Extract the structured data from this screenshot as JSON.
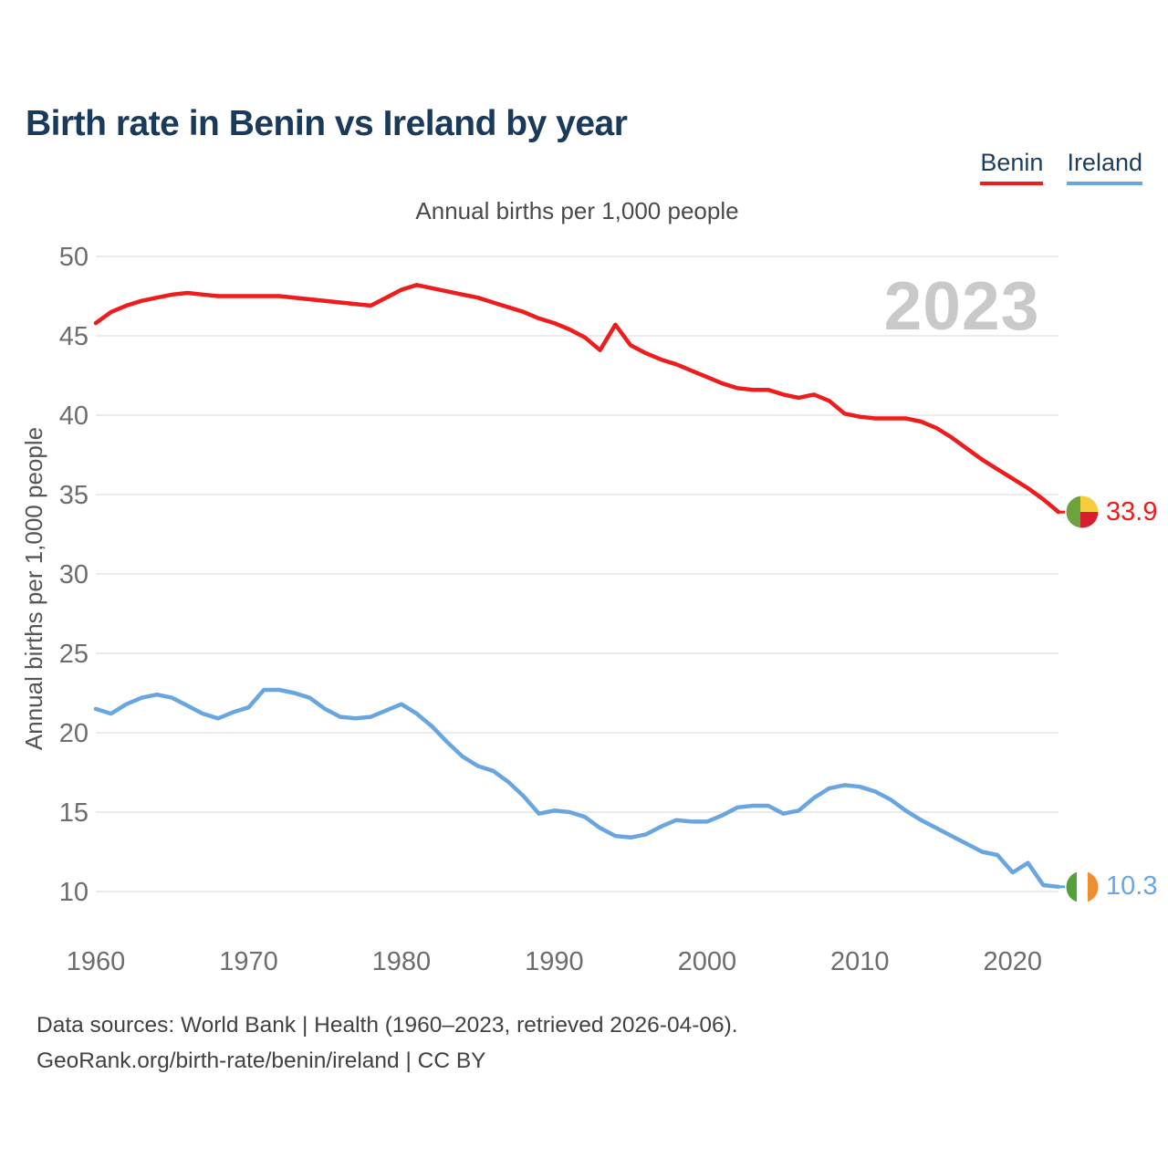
{
  "title": "Birth rate in Benin vs Ireland by year",
  "subtitle": "Annual births per 1,000 people",
  "watermark": "2023",
  "legend": [
    {
      "label": "Benin",
      "color": "#ee1c1c"
    },
    {
      "label": "Ireland",
      "color": "#69a6e0"
    }
  ],
  "end_labels": {
    "benin": "33.9",
    "ireland": "10.3"
  },
  "icons": {
    "benin_flag": {
      "green": "#6ca33d",
      "yellow": "#f5ce3e",
      "red": "#d81e2e"
    },
    "ireland_flag": {
      "green": "#55a03b",
      "white": "#ffffff",
      "orange": "#ef8d33"
    }
  },
  "footer": {
    "line1": "Data sources: World Bank | Health (1960–2023, retrieved 2026-04-06).",
    "line2": "GeoRank.org/birth-rate/benin/ireland | CC BY"
  },
  "chart_data": {
    "type": "line",
    "title": "Annual births per 1,000 people",
    "xlabel": "",
    "ylabel": "Annual births per 1,000 people",
    "ylim": [
      10,
      50
    ],
    "yticks": [
      10,
      15,
      20,
      25,
      30,
      35,
      40,
      45,
      50
    ],
    "xticks": [
      1960,
      1970,
      1980,
      1990,
      2000,
      2010,
      2020
    ],
    "grid": true,
    "legend_position": "top-right",
    "x": [
      1960,
      1961,
      1962,
      1963,
      1964,
      1965,
      1966,
      1967,
      1968,
      1969,
      1970,
      1971,
      1972,
      1973,
      1974,
      1975,
      1976,
      1977,
      1978,
      1979,
      1980,
      1981,
      1982,
      1983,
      1984,
      1985,
      1986,
      1987,
      1988,
      1989,
      1990,
      1991,
      1992,
      1993,
      1994,
      1995,
      1996,
      1997,
      1998,
      1999,
      2000,
      2001,
      2002,
      2003,
      2004,
      2005,
      2006,
      2007,
      2008,
      2009,
      2010,
      2011,
      2012,
      2013,
      2014,
      2015,
      2016,
      2017,
      2018,
      2019,
      2020,
      2021,
      2022,
      2023
    ],
    "series": [
      {
        "name": "Benin",
        "color": "#ee1c1c",
        "end_value": 33.9,
        "values": [
          45.8,
          46.5,
          46.9,
          47.2,
          47.4,
          47.6,
          47.7,
          47.6,
          47.5,
          47.5,
          47.5,
          47.5,
          47.5,
          47.4,
          47.3,
          47.2,
          47.1,
          47.0,
          46.9,
          47.4,
          47.9,
          48.2,
          48.0,
          47.8,
          47.6,
          47.4,
          47.1,
          46.8,
          46.5,
          46.1,
          45.8,
          45.4,
          44.9,
          44.1,
          45.7,
          44.4,
          43.9,
          43.5,
          43.2,
          42.8,
          42.4,
          42.0,
          41.7,
          41.6,
          41.6,
          41.3,
          41.1,
          41.3,
          40.9,
          40.1,
          39.9,
          39.8,
          39.8,
          39.8,
          39.6,
          39.2,
          38.6,
          37.9,
          37.2,
          36.6,
          36.0,
          35.4,
          34.7,
          33.9
        ]
      },
      {
        "name": "Ireland",
        "color": "#69a6e0",
        "end_value": 10.3,
        "values": [
          21.5,
          21.2,
          21.8,
          22.2,
          22.4,
          22.2,
          21.7,
          21.2,
          20.9,
          21.3,
          21.6,
          22.7,
          22.7,
          22.5,
          22.2,
          21.5,
          21.0,
          20.9,
          21.0,
          21.4,
          21.8,
          21.2,
          20.4,
          19.4,
          18.5,
          17.9,
          17.6,
          16.9,
          16.0,
          14.9,
          15.1,
          15.0,
          14.7,
          14.0,
          13.5,
          13.4,
          13.6,
          14.1,
          14.5,
          14.4,
          14.4,
          14.8,
          15.3,
          15.4,
          15.4,
          14.9,
          15.1,
          15.9,
          16.5,
          16.7,
          16.6,
          16.3,
          15.8,
          15.1,
          14.5,
          14.0,
          13.5,
          13.0,
          12.5,
          12.3,
          11.2,
          11.8,
          10.4,
          10.3
        ]
      }
    ]
  }
}
